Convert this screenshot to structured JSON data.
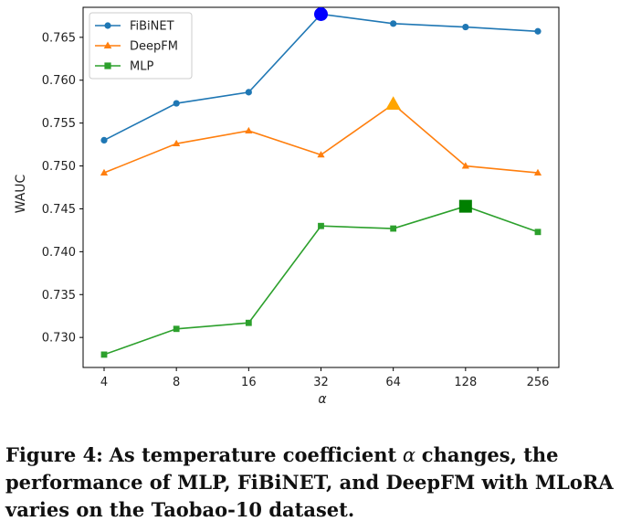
{
  "chart_data": {
    "type": "line",
    "x_axis_label": "α",
    "y_axis_label": "WAUC",
    "categories": [
      "4",
      "8",
      "16",
      "32",
      "64",
      "128",
      "256"
    ],
    "yticks": [
      "0.730",
      "0.735",
      "0.740",
      "0.745",
      "0.750",
      "0.755",
      "0.760",
      "0.765"
    ],
    "ylim": [
      0.7265,
      0.7685
    ],
    "grid": false,
    "legend_position": "top-left",
    "series": [
      {
        "name": "FiBiNET",
        "values": [
          0.753,
          0.7573,
          0.7586,
          0.7677,
          0.7666,
          0.7662,
          0.7657
        ],
        "color": "#1f77b4",
        "marker": "circle",
        "highlight_index": 3
      },
      {
        "name": "DeepFM",
        "values": [
          0.7492,
          0.7526,
          0.7541,
          0.7513,
          0.7572,
          0.75,
          0.7492
        ],
        "color": "#ff7f0e",
        "marker": "triangle",
        "highlight_index": 4
      },
      {
        "name": "MLP",
        "values": [
          0.728,
          0.731,
          0.7317,
          0.743,
          0.7427,
          0.7453,
          0.7423
        ],
        "color": "#2ca02c",
        "marker": "square",
        "highlight_index": 5
      }
    ],
    "highlight_colors": [
      "#0000ff",
      "#ffa500",
      "#008000"
    ]
  },
  "caption": {
    "label": "Figure 4:",
    "part1": "As temperature coefficient",
    "symbol": "α",
    "part2": "changes, the performance of MLP, FiBiNET, and DeepFM with MLoRA varies on the Taobao-10 dataset."
  }
}
